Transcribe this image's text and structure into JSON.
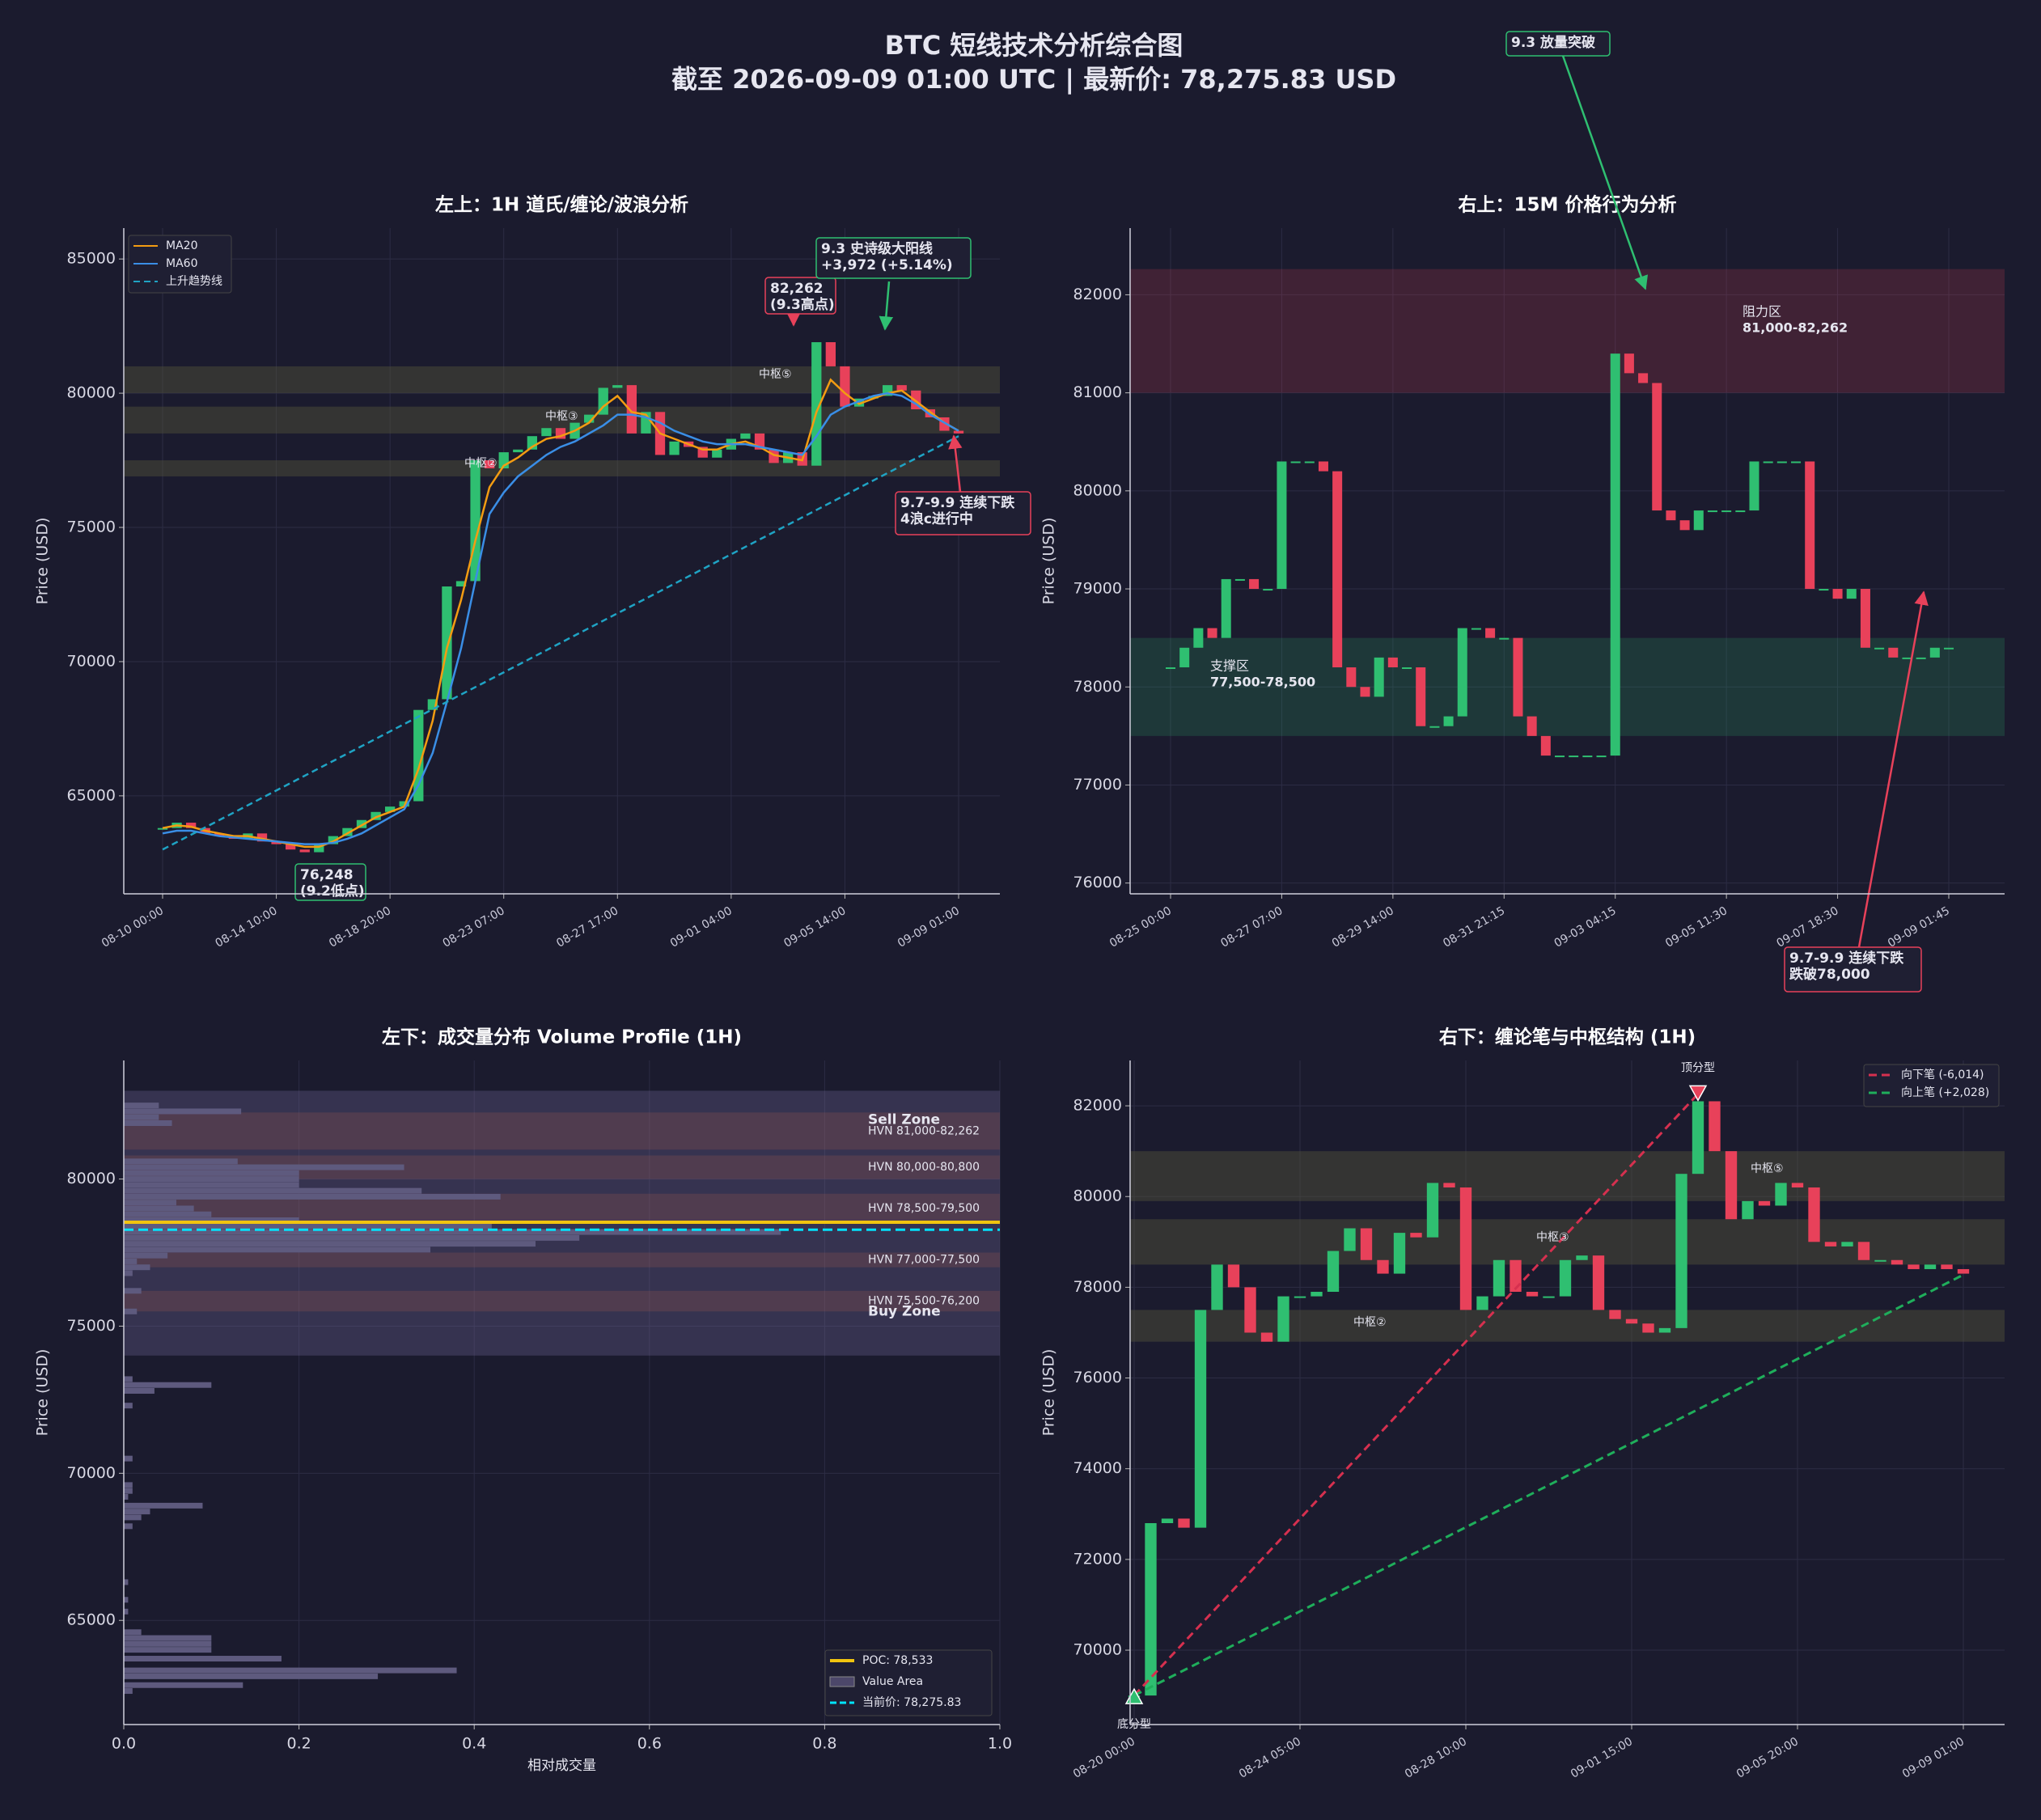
{
  "title": "BTC 短线技术分析综合图",
  "subtitle": "截至 2026-09-09 01:00 UTC | 最新价: 78,275.83 USD",
  "chart_data": [
    {
      "type": "line",
      "title": "左上：1H 道氏/缠论/波浪分析",
      "ylabel": "Price (USD)",
      "categories": [
        "08-10 00:00",
        null,
        null,
        null,
        null,
        null,
        null,
        null,
        "08-14 10:00",
        null,
        null,
        null,
        null,
        null,
        null,
        null,
        "08-18 20:00",
        null,
        null,
        null,
        null,
        null,
        null,
        null,
        "08-23 07:00",
        null,
        null,
        null,
        null,
        null,
        null,
        null,
        "08-27 17:00",
        null,
        null,
        null,
        null,
        null,
        null,
        null,
        "09-01 04:00",
        null,
        null,
        null,
        null,
        null,
        null,
        null,
        "09-05 14:00",
        null,
        null,
        null,
        null,
        null,
        null,
        null,
        "09-09 01:00"
      ],
      "close": [
        63800,
        64000,
        63800,
        63600,
        63500,
        63400,
        63600,
        63300,
        63200,
        63000,
        62900,
        63200,
        63500,
        63800,
        64100,
        64400,
        64600,
        64800,
        68200,
        68600,
        72800,
        73000,
        77500,
        77200,
        77800,
        77900,
        78400,
        78700,
        78300,
        78900,
        79200,
        80200,
        80300,
        78500,
        79300,
        77700,
        78200,
        78000,
        77600,
        77900,
        78300,
        78500,
        77900,
        77400,
        77800,
        77300,
        81900,
        81000,
        79500,
        79800,
        79900,
        80300,
        80100,
        79400,
        79100,
        78600,
        78500
      ],
      "up_color": "#2fbf71",
      "down_color": "#e8415a",
      "series": [
        {
          "name": "MA20",
          "color": "#f39c12",
          "values": [
            63800,
            63900,
            63850,
            63700,
            63600,
            63500,
            63500,
            63400,
            63300,
            63200,
            63100,
            63100,
            63300,
            63600,
            63900,
            64200,
            64400,
            64600,
            66000,
            67800,
            70500,
            72300,
            74500,
            76500,
            77300,
            77600,
            78000,
            78300,
            78400,
            78600,
            78900,
            79500,
            79900,
            79300,
            79200,
            78500,
            78300,
            78100,
            77900,
            77900,
            78100,
            78200,
            78000,
            77700,
            77600,
            77500,
            79300,
            80500,
            80000,
            79600,
            79800,
            80000,
            80100,
            79700,
            79300,
            78900,
            78600
          ]
        },
        {
          "name": "MA60",
          "color": "#3a8ee6",
          "values": [
            63600,
            63700,
            63700,
            63600,
            63500,
            63450,
            63400,
            63350,
            63300,
            63250,
            63200,
            63200,
            63250,
            63400,
            63600,
            63900,
            64200,
            64500,
            65400,
            66600,
            68500,
            70500,
            73000,
            75500,
            76300,
            76900,
            77300,
            77700,
            78000,
            78200,
            78500,
            78800,
            79200,
            79200,
            79100,
            78900,
            78600,
            78400,
            78200,
            78100,
            78100,
            78100,
            78000,
            77900,
            77800,
            77700,
            78400,
            79200,
            79500,
            79700,
            79900,
            80000,
            79900,
            79600,
            79200,
            78900,
            78600
          ]
        }
      ],
      "trendline": {
        "name": "上升趋势线",
        "color": "#1fa3c4",
        "values": [
          63000,
          78400
        ]
      },
      "zone_color": "#55553a",
      "zones": [
        {
          "range": [
            80000,
            81000
          ]
        },
        {
          "range": [
            78500,
            79500
          ]
        },
        {
          "range": [
            76900,
            77500
          ]
        }
      ],
      "pivot_labels": [
        "中枢②",
        "中枢③",
        "中枢⑤"
      ],
      "annotations": [
        {
          "text": [
            "82,262",
            "(9.3高点)"
          ],
          "color": "#e8415a"
        },
        {
          "text": [
            "9.3 史诗级大阳线",
            "+3,972 (+5.14%)"
          ],
          "color": "#2fbf71"
        },
        {
          "text": [
            "9.7-9.9 连续下跌",
            "4浪c进行中"
          ],
          "color": "#e8415a"
        },
        {
          "text": [
            "76,248",
            "(9.2低点)"
          ],
          "color": "#2fbf71"
        }
      ],
      "ylim": [
        61350,
        86150
      ],
      "yticks": [
        65000,
        70000,
        75000,
        80000,
        85000
      ],
      "grid": true
    },
    {
      "type": "line",
      "title": "右上：15M 价格行为分析",
      "ylabel": "Price (USD)",
      "categories": [
        "08-25 00:00",
        null,
        null,
        null,
        null,
        null,
        null,
        null,
        "08-27 07:00",
        null,
        null,
        null,
        null,
        null,
        null,
        null,
        "08-29 14:00",
        null,
        null,
        null,
        null,
        null,
        null,
        null,
        "08-31 21:15",
        null,
        null,
        null,
        null,
        null,
        null,
        null,
        "09-03 04:15",
        null,
        null,
        null,
        null,
        null,
        null,
        null,
        "09-05 11:30",
        null,
        null,
        null,
        null,
        null,
        null,
        null,
        "09-07 18:30",
        null,
        null,
        null,
        null,
        null,
        null,
        null,
        "09-09 01:45"
      ],
      "close": [
        78200,
        78400,
        78600,
        78500,
        79100,
        79100,
        79000,
        79000,
        80300,
        80300,
        80300,
        80200,
        78200,
        78000,
        77900,
        78300,
        78200,
        78200,
        77600,
        77600,
        77700,
        78600,
        78600,
        78500,
        78500,
        77700,
        77500,
        77300,
        77300,
        77300,
        77300,
        77300,
        81400,
        81200,
        81100,
        79800,
        79700,
        79600,
        79800,
        79800,
        79800,
        79800,
        80300,
        80300,
        80300,
        80300,
        79000,
        79000,
        78900,
        79000,
        78400,
        78400,
        78300,
        78300,
        78300,
        78400,
        78400
      ],
      "up_color": "#2fbf71",
      "down_color": "#e8415a",
      "series": [],
      "zones": [
        {
          "range": [
            81000,
            82262
          ],
          "label": [
            "阻力区",
            "81,000-82,262"
          ],
          "color": "#e8415a"
        },
        {
          "range": [
            77500,
            78500
          ],
          "label": [
            "支撑区",
            "77,500-78,500"
          ],
          "color": "#2fbf71"
        }
      ],
      "annotations": [
        {
          "text": [
            "9.3 放量突破"
          ],
          "color": "#2fbf71"
        },
        {
          "text": [
            "9.7-9.9 连续下跌",
            "跌破78,000"
          ],
          "color": "#e8415a"
        }
      ],
      "ylim": [
        75890,
        82680
      ],
      "yticks": [
        76000,
        77000,
        78000,
        79000,
        80000,
        81000,
        82000
      ],
      "grid": true
    },
    {
      "type": "bar",
      "title": "左下：成交量分布 Volume Profile (1H)",
      "ylabel": "Price (USD)",
      "xlabel": "相对成交量",
      "color": "#5e5a7e",
      "y": [
        82500,
        82300,
        82100,
        81900,
        80600,
        80400,
        80200,
        80000,
        79800,
        79600,
        79400,
        79200,
        79000,
        78800,
        78600,
        78400,
        78200,
        78000,
        77800,
        77600,
        77400,
        77200,
        77000,
        76800,
        76200,
        75500,
        73200,
        73000,
        72800,
        72300,
        70500,
        69600,
        69400,
        69200,
        68900,
        68700,
        68500,
        68200,
        66300,
        65700,
        65300,
        64600,
        64400,
        64200,
        64000,
        63700,
        63300,
        63100,
        62800,
        62600
      ],
      "values": [
        0.04,
        0.134,
        0.04,
        0.055,
        0.13,
        0.32,
        0.2,
        0.2,
        0.2,
        0.34,
        0.43,
        0.06,
        0.08,
        0.1,
        0.2,
        0.42,
        0.75,
        0.52,
        0.47,
        0.35,
        0.05,
        0.015,
        0.03,
        0.01,
        0.02,
        0.015,
        0.01,
        0.1,
        0.035,
        0.01,
        0.01,
        0.01,
        0.01,
        0.005,
        0.09,
        0.03,
        0.02,
        0.01,
        0.005,
        0.005,
        0.005,
        0.02,
        0.1,
        0.1,
        0.1,
        0.18,
        0.38,
        0.29,
        0.136,
        0.01
      ],
      "value_area": {
        "range": [
          74000,
          83000
        ],
        "label": "Value Area",
        "color": "#6a6290"
      },
      "poc": {
        "value": 78533,
        "label": "POC: 78,533",
        "color": "#f1c40f"
      },
      "current": {
        "value": 78275.83,
        "label": "当前价: 78,275.83",
        "color": "#00e5ff"
      },
      "zones": [
        {
          "range": [
            81000,
            82262
          ],
          "label": "HVN 81,000-82,262"
        },
        {
          "range": [
            80000,
            80800
          ],
          "label": "HVN 80,000-80,800"
        },
        {
          "range": [
            78500,
            79500
          ],
          "label": "HVN 78,500-79,500"
        },
        {
          "range": [
            77000,
            77500
          ],
          "label": "HVN 77,000-77,500"
        },
        {
          "range": [
            75500,
            76200
          ],
          "label": "HVN 75,500-76,200"
        }
      ],
      "sell_label": "Sell Zone",
      "buy_label": "Buy Zone",
      "xlim": [
        0,
        1
      ],
      "xticks": [
        {
          "value": 0,
          "label": "0.0"
        },
        0.2,
        0.4,
        0.6,
        0.8,
        {
          "value": 1,
          "label": "1.0"
        }
      ],
      "ylim": [
        61460,
        84030
      ],
      "yticks": [
        65000,
        70000,
        75000,
        80000
      ],
      "grid": true
    },
    {
      "type": "line",
      "title": "右下：缠论笔与中枢结构 (1H)",
      "ylabel": "Price (USD)",
      "categories": [
        "08-20 00:00",
        null,
        null,
        null,
        null,
        null,
        null,
        null,
        null,
        null,
        "08-24 05:00",
        null,
        null,
        null,
        null,
        null,
        null,
        null,
        null,
        null,
        "08-28 10:00",
        null,
        null,
        null,
        null,
        null,
        null,
        null,
        null,
        null,
        "09-01 15:00",
        null,
        null,
        null,
        null,
        null,
        null,
        null,
        null,
        null,
        "09-05 20:00",
        null,
        null,
        null,
        null,
        null,
        null,
        null,
        null,
        null,
        "09-09 01:00"
      ],
      "close": [
        69000,
        72800,
        72900,
        72700,
        77500,
        78500,
        78000,
        77000,
        76800,
        77800,
        77800,
        77900,
        78800,
        79300,
        78600,
        78300,
        79200,
        79100,
        80300,
        80200,
        77500,
        77800,
        78600,
        77900,
        77800,
        77800,
        78600,
        78700,
        77500,
        77300,
        77200,
        77000,
        77100,
        80500,
        82100,
        81000,
        79500,
        79900,
        79800,
        80300,
        80200,
        79000,
        78900,
        79000,
        78600,
        78600,
        78500,
        78400,
        78500,
        78400,
        78300
      ],
      "up_color": "#2fbf71",
      "down_color": "#e8415a",
      "series": [],
      "strokes": [
        {
          "name": "向下笔 (-6,014)",
          "color": "#d6304f",
          "values": [
            69000,
            82262
          ]
        },
        {
          "name": "向上笔 (+2,028)",
          "color": "#1fae5b",
          "values": [
            69000,
            78275
          ]
        }
      ],
      "top_fractal": {
        "label": "顶分型",
        "value": 82262
      },
      "bottom_fractal": {
        "label": "底分型",
        "value": 69000
      },
      "zone_color": "#55553a",
      "zones": [
        {
          "range": [
            79900,
            81000
          ]
        },
        {
          "range": [
            78500,
            79500
          ]
        },
        {
          "range": [
            76800,
            77500
          ]
        }
      ],
      "pivot_labels": [
        "中枢②",
        "中枢③",
        "中枢⑤"
      ],
      "ylim": [
        68360,
        83000
      ],
      "yticks": [
        70000,
        72000,
        74000,
        76000,
        78000,
        80000,
        82000
      ],
      "grid": true
    }
  ]
}
